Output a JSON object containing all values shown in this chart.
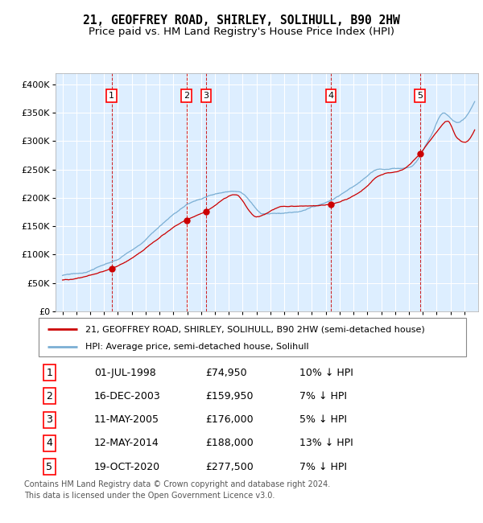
{
  "title": "21, GEOFFREY ROAD, SHIRLEY, SOLIHULL, B90 2HW",
  "subtitle": "Price paid vs. HM Land Registry's House Price Index (HPI)",
  "ylim": [
    0,
    420000
  ],
  "yticks": [
    0,
    50000,
    100000,
    150000,
    200000,
    250000,
    300000,
    350000,
    400000
  ],
  "ytick_labels": [
    "£0",
    "£50K",
    "£100K",
    "£150K",
    "£200K",
    "£250K",
    "£300K",
    "£350K",
    "£400K"
  ],
  "xlim_start": 1994.5,
  "xlim_end": 2025.0,
  "bg_color": "#ddeeff",
  "grid_color": "#ffffff",
  "sale_dates_x": [
    1998.54,
    2003.96,
    2005.36,
    2014.37,
    2020.8
  ],
  "sale_prices": [
    74950,
    159950,
    176000,
    188000,
    277500
  ],
  "sale_labels": [
    "1",
    "2",
    "3",
    "4",
    "5"
  ],
  "vline_color": "#cc0000",
  "sale_dot_color": "#cc0000",
  "hpi_line_color": "#7bafd4",
  "price_line_color": "#cc0000",
  "legend_house_label": "21, GEOFFREY ROAD, SHIRLEY, SOLIHULL, B90 2HW (semi-detached house)",
  "legend_hpi_label": "HPI: Average price, semi-detached house, Solihull",
  "table_rows": [
    [
      "1",
      "01-JUL-1998",
      "£74,950",
      "10% ↓ HPI"
    ],
    [
      "2",
      "16-DEC-2003",
      "£159,950",
      "7% ↓ HPI"
    ],
    [
      "3",
      "11-MAY-2005",
      "£176,000",
      "5% ↓ HPI"
    ],
    [
      "4",
      "12-MAY-2014",
      "£188,000",
      "13% ↓ HPI"
    ],
    [
      "5",
      "19-OCT-2020",
      "£277,500",
      "7% ↓ HPI"
    ]
  ],
  "footnote_line1": "Contains HM Land Registry data © Crown copyright and database right 2024.",
  "footnote_line2": "This data is licensed under the Open Government Licence v3.0.",
  "title_fontsize": 10.5,
  "subtitle_fontsize": 9.5,
  "tick_fontsize": 8,
  "legend_fontsize": 8,
  "table_fontsize": 9,
  "footnote_fontsize": 7
}
